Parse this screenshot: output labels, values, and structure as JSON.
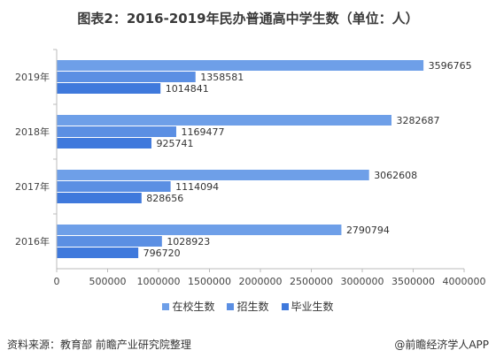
{
  "title": "图表2：2016-2019年民办普通高中学生数（单位：人）",
  "footer": {
    "source": "资料来源：教育部 前瞻产业研究院整理",
    "brand": "@前瞻经济学人APP"
  },
  "colors": {
    "在校生数": "#6e9fe8",
    "招生数": "#5b8fe3",
    "毕业生数": "#3f79dc",
    "axis": "#bbbbbb",
    "grid": "#e4e4e4"
  },
  "chart_data": {
    "type": "bar",
    "orientation": "horizontal",
    "categories": [
      "2019年",
      "2018年",
      "2017年",
      "2016年"
    ],
    "series": [
      {
        "name": "在校生数",
        "values": [
          3596765,
          3282687,
          3062608,
          2790794
        ]
      },
      {
        "name": "招生数",
        "values": [
          1358581,
          1169477,
          1114094,
          1028923
        ]
      },
      {
        "name": "毕业生数",
        "values": [
          1014841,
          925741,
          828656,
          796720
        ]
      }
    ],
    "xlim": [
      0,
      4000000
    ],
    "xticks": [
      "0",
      "500000",
      "1000000",
      "1500000",
      "2000000",
      "2500000",
      "3000000",
      "3500000",
      "4000000"
    ],
    "grid": false,
    "legend_position": "bottom"
  }
}
